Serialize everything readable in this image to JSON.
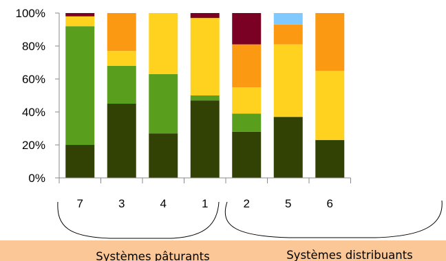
{
  "chart_data": {
    "type": "bar",
    "stacked": true,
    "percent": true,
    "categories": [
      "7",
      "3",
      "4",
      "1",
      "2",
      "5",
      "6"
    ],
    "yticks": [
      "0%",
      "20%",
      "40%",
      "60%",
      "80%",
      "100%"
    ],
    "ylim": [
      0,
      100
    ],
    "grid": false,
    "colors": {
      "dark_olive": "#324205",
      "green": "#5a9e1e",
      "yellow": "#ffd21f",
      "orange": "#fb9a12",
      "light_blue": "#80c9ff",
      "maroon": "#7a0024"
    },
    "bars": [
      {
        "category": "7",
        "segments": [
          {
            "value": 20,
            "color": "#324205"
          },
          {
            "value": 72,
            "color": "#5a9e1e"
          },
          {
            "value": 6,
            "color": "#ffd21f"
          },
          {
            "value": 2,
            "color": "#7a0024"
          }
        ]
      },
      {
        "category": "3",
        "segments": [
          {
            "value": 45,
            "color": "#324205"
          },
          {
            "value": 23,
            "color": "#5a9e1e"
          },
          {
            "value": 9,
            "color": "#ffd21f"
          },
          {
            "value": 23,
            "color": "#fb9a12"
          }
        ]
      },
      {
        "category": "4",
        "segments": [
          {
            "value": 27,
            "color": "#324205"
          },
          {
            "value": 36,
            "color": "#5a9e1e"
          },
          {
            "value": 37,
            "color": "#ffd21f"
          }
        ]
      },
      {
        "category": "1",
        "segments": [
          {
            "value": 47,
            "color": "#324205"
          },
          {
            "value": 3,
            "color": "#5a9e1e"
          },
          {
            "value": 47,
            "color": "#ffd21f"
          },
          {
            "value": 3,
            "color": "#7a0024"
          }
        ]
      },
      {
        "category": "2",
        "segments": [
          {
            "value": 28,
            "color": "#324205"
          },
          {
            "value": 11,
            "color": "#5a9e1e"
          },
          {
            "value": 16,
            "color": "#ffd21f"
          },
          {
            "value": 26,
            "color": "#fb9a12"
          },
          {
            "value": 19,
            "color": "#7a0024"
          }
        ]
      },
      {
        "category": "5",
        "segments": [
          {
            "value": 37,
            "color": "#324205"
          },
          {
            "value": 44,
            "color": "#ffd21f"
          },
          {
            "value": 12,
            "color": "#fb9a12"
          },
          {
            "value": 7,
            "color": "#80c9ff"
          }
        ]
      },
      {
        "category": "6",
        "segments": [
          {
            "value": 23,
            "color": "#324205"
          },
          {
            "value": 42,
            "color": "#ffd21f"
          },
          {
            "value": 35,
            "color": "#fb9a12"
          }
        ]
      }
    ],
    "groups": [
      {
        "label": "Systèmes pâturants",
        "categories": [
          "7",
          "3",
          "4"
        ]
      },
      {
        "label": "Systèmes distribuants",
        "categories": [
          "1",
          "2",
          "5",
          "6"
        ]
      }
    ],
    "band_color": "#fbc796"
  }
}
